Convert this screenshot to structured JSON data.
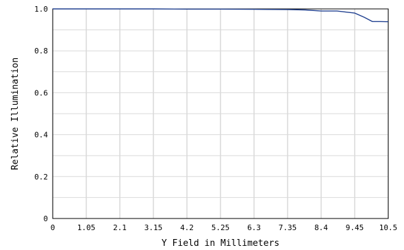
{
  "chart_data": {
    "type": "line",
    "title": "",
    "xlabel": "Y Field in Millimeters",
    "ylabel": "Relative Illumination",
    "xlim": [
      0,
      10.5
    ],
    "ylim": [
      0,
      1.0
    ],
    "x_ticks": [
      "0",
      "1.05",
      "2.1",
      "3.15",
      "4.2",
      "5.25",
      "6.3",
      "7.35",
      "8.4",
      "9.45",
      "10.5"
    ],
    "y_ticks": [
      "0",
      "0.2",
      "0.4",
      "0.6",
      "0.8",
      "1.0"
    ],
    "grid": true,
    "colors": {
      "line": "#1f3f8f",
      "grid": "#d9d9d9",
      "frame": "#000000"
    },
    "series": [
      {
        "x": [
          0,
          1.05,
          2.1,
          3.15,
          4.2,
          5.25,
          6.3,
          7.35,
          7.9,
          8.4,
          8.9,
          9.45,
          9.75,
          10.0,
          10.25,
          10.5
        ],
        "y": [
          1.0,
          1.0,
          1.0,
          1.0,
          0.999,
          0.999,
          0.998,
          0.997,
          0.995,
          0.99,
          0.99,
          0.98,
          0.96,
          0.94,
          0.94,
          0.939
        ]
      }
    ]
  }
}
